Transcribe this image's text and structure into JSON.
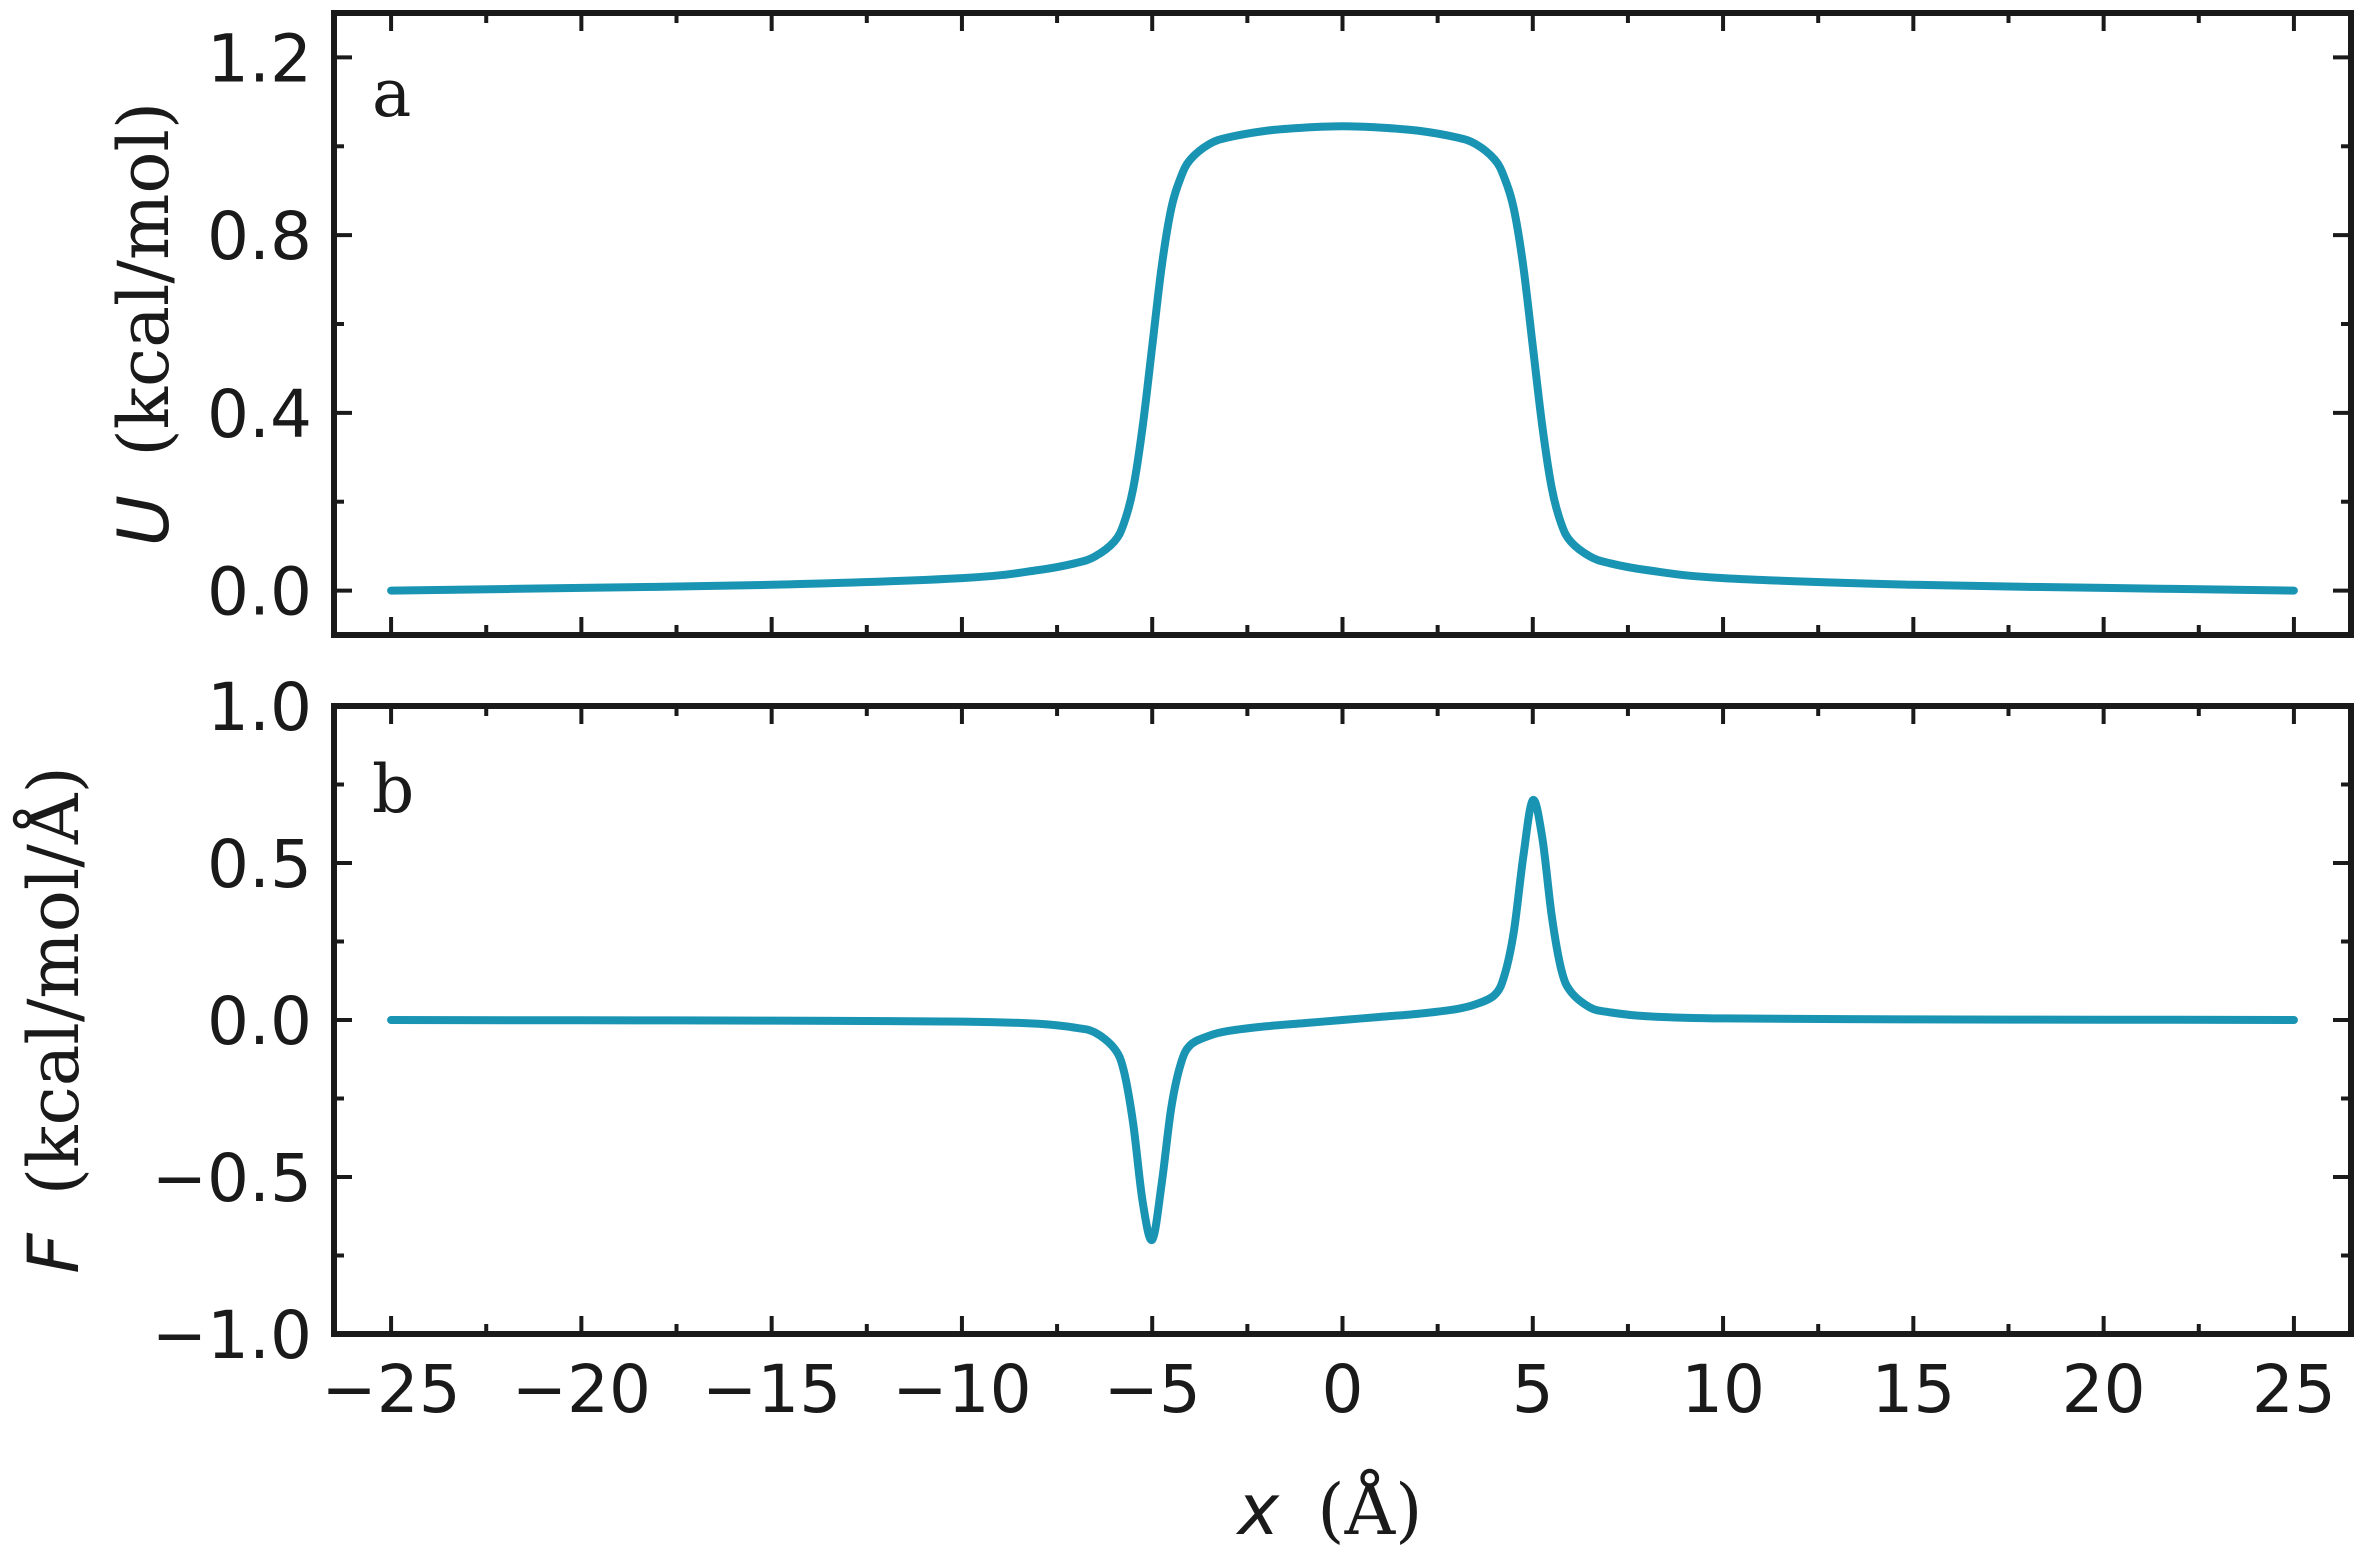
{
  "chart_data": [
    {
      "type": "line",
      "panel_label": "a",
      "ylabel_symbol": "U",
      "ylabel_unit": "(kcal/mol)",
      "xlim": [
        -26.5,
        26.5
      ],
      "ylim": [
        -0.1,
        1.3
      ],
      "x_ticks": [
        -25,
        -20,
        -15,
        -10,
        -5,
        0,
        5,
        10,
        15,
        20,
        25
      ],
      "y_ticks": [
        0.0,
        0.4,
        0.8,
        1.2
      ],
      "y_tick_labels": [
        "0.0",
        "0.4",
        "0.8",
        "1.2"
      ],
      "color": "#1a94b3",
      "series": [
        {
          "x": [
            -25,
            -20,
            -15,
            -10,
            -8,
            -7,
            -6.5,
            -6,
            -5.75,
            -5.5,
            -5.25,
            -5,
            -4.75,
            -4.5,
            -4.25,
            -4,
            -3.5,
            -3,
            -2,
            -1,
            0,
            1,
            2,
            3,
            3.5,
            4,
            4.25,
            4.5,
            4.75,
            5,
            5.25,
            5.5,
            5.75,
            6,
            6.5,
            7,
            8,
            10,
            15,
            20,
            25
          ],
          "y": [
            0.0,
            0.006,
            0.013,
            0.028,
            0.046,
            0.062,
            0.077,
            0.11,
            0.15,
            0.23,
            0.37,
            0.55,
            0.73,
            0.86,
            0.93,
            0.97,
            1.005,
            1.02,
            1.035,
            1.042,
            1.045,
            1.042,
            1.035,
            1.02,
            1.005,
            0.97,
            0.93,
            0.86,
            0.73,
            0.55,
            0.37,
            0.23,
            0.15,
            0.11,
            0.077,
            0.062,
            0.046,
            0.028,
            0.013,
            0.006,
            0.0
          ]
        }
      ]
    },
    {
      "type": "line",
      "panel_label": "b",
      "xlabel_symbol": "x",
      "xlabel_unit": "(Å)",
      "ylabel_symbol": "F",
      "ylabel_unit": "(kcal/mol/Å)",
      "xlim": [
        -26.5,
        26.5
      ],
      "ylim": [
        -1.0,
        1.0
      ],
      "x_ticks": [
        -25,
        -20,
        -15,
        -10,
        -5,
        0,
        5,
        10,
        15,
        20,
        25
      ],
      "x_tick_labels": [
        "−25",
        "−20",
        "−15",
        "−10",
        "−5",
        "0",
        "5",
        "10",
        "15",
        "20",
        "25"
      ],
      "y_ticks": [
        -1.0,
        -0.5,
        0.0,
        0.5,
        1.0
      ],
      "y_tick_labels": [
        "−1.0",
        "−0.5",
        "0.0",
        "0.5",
        "1.0"
      ],
      "color": "#1a94b3",
      "series": [
        {
          "x": [
            -25,
            -20,
            -15,
            -10,
            -8,
            -7,
            -6.5,
            -6,
            -5.75,
            -5.5,
            -5.25,
            -5,
            -4.75,
            -4.5,
            -4.25,
            -4,
            -3.5,
            -3,
            -2,
            -1,
            0,
            1,
            2,
            3,
            3.5,
            4,
            4.25,
            4.5,
            4.75,
            5,
            5.25,
            5.5,
            5.75,
            6,
            6.5,
            7,
            8,
            10,
            15,
            20,
            25
          ],
          "y": [
            0.0,
            -0.001,
            -0.002,
            -0.005,
            -0.012,
            -0.025,
            -0.04,
            -0.09,
            -0.16,
            -0.33,
            -0.58,
            -0.7,
            -0.52,
            -0.28,
            -0.14,
            -0.08,
            -0.05,
            -0.035,
            -0.02,
            -0.01,
            0.0,
            0.01,
            0.02,
            0.035,
            0.05,
            0.08,
            0.14,
            0.28,
            0.52,
            0.7,
            0.58,
            0.33,
            0.16,
            0.09,
            0.04,
            0.025,
            0.012,
            0.005,
            0.002,
            0.001,
            0.0
          ]
        }
      ]
    }
  ]
}
